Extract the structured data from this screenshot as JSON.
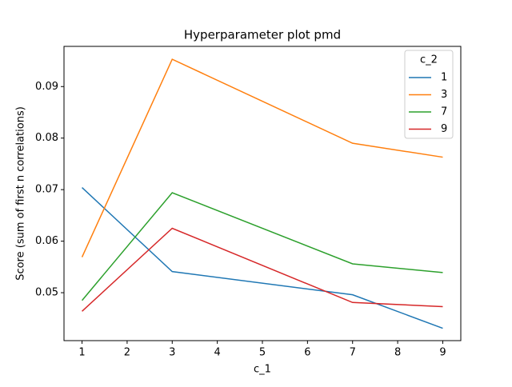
{
  "chart_data": {
    "type": "line",
    "title": "Hyperparameter plot pmd",
    "x_label": "c_1",
    "y_label": "Score (sum of first n correlations)",
    "x": [
      1,
      3,
      7,
      9
    ],
    "series": [
      {
        "name": "1",
        "color": "#1f77b4",
        "values": [
          0.0704,
          0.0541,
          0.0496,
          0.0431
        ]
      },
      {
        "name": "3",
        "color": "#ff7f0e",
        "values": [
          0.0569,
          0.0953,
          0.079,
          0.0763
        ]
      },
      {
        "name": "7",
        "color": "#2ca02c",
        "values": [
          0.0485,
          0.0694,
          0.0556,
          0.0539
        ]
      },
      {
        "name": "9",
        "color": "#d62728",
        "values": [
          0.0464,
          0.0625,
          0.0481,
          0.0473
        ]
      }
    ],
    "legend_title": "c_2",
    "legend_position": "upper-right",
    "xlim": [
      0.6,
      9.4
    ],
    "xticks": [
      1,
      2,
      3,
      4,
      5,
      6,
      7,
      8,
      9
    ],
    "ylim": [
      0.0407,
      0.0978
    ],
    "yticks": [
      0.05,
      0.06,
      0.07,
      0.08,
      0.09
    ],
    "grid": false
  }
}
